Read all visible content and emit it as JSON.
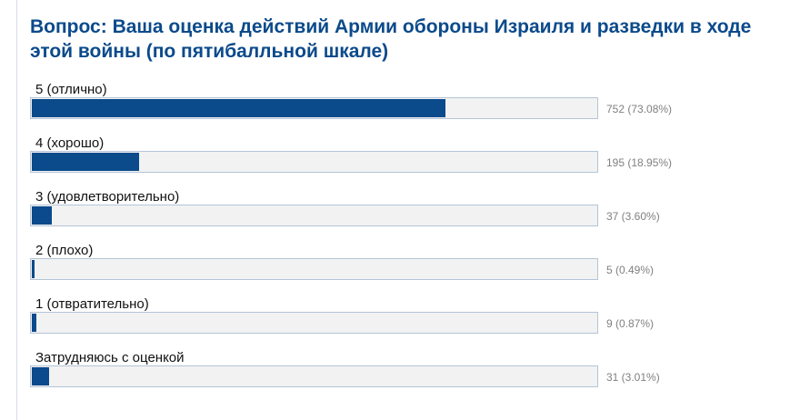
{
  "poll": {
    "question": "Вопрос: Ваша оценка действий Армии обороны Израиля и разведки в ходе этой войны (по пятибалльной шкале)",
    "accent_color": "#0b4a8b",
    "options": [
      {
        "label": "5 (отлично)",
        "result": "752 (73.08%)",
        "percent": 73.08
      },
      {
        "label": "4 (хорошо)",
        "result": "195 (18.95%)",
        "percent": 18.95
      },
      {
        "label": "3 (удовлетворительно)",
        "result": "37 (3.60%)",
        "percent": 3.6
      },
      {
        "label": "2 (плохо)",
        "result": "5 (0.49%)",
        "percent": 0.49
      },
      {
        "label": "1 (отвратительно)",
        "result": "9 (0.87%)",
        "percent": 0.87
      },
      {
        "label": "Затрудняюсь с оценкой",
        "result": "31 (3.01%)",
        "percent": 3.01
      }
    ]
  }
}
